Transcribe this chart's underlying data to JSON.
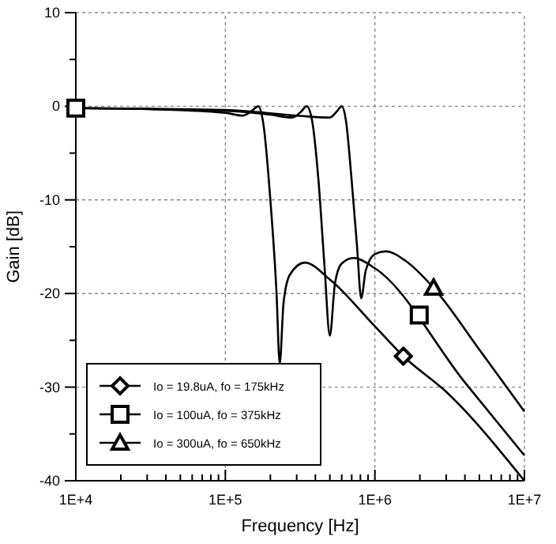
{
  "chart_data": {
    "type": "line",
    "xlabel": "Frequency [Hz]",
    "ylabel": "Gain [dB]",
    "log": "x",
    "grid": true,
    "legend": "bottom left",
    "line_style": "solid",
    "xlim": [
      10000,
      10000000
    ],
    "ylim": [
      -40,
      10
    ],
    "xticks": [
      {
        "value": 10000,
        "label": "1E+4"
      },
      {
        "value": 20000,
        "label": null
      },
      {
        "value": 30000,
        "label": null
      },
      {
        "value": 40000,
        "label": null
      },
      {
        "value": 50000,
        "label": null
      },
      {
        "value": 60000,
        "label": null
      },
      {
        "value": 70000,
        "label": null
      },
      {
        "value": 80000,
        "label": null
      },
      {
        "value": 90000,
        "label": null
      },
      {
        "value": 100000,
        "label": "1E+5"
      },
      {
        "value": 200000,
        "label": null
      },
      {
        "value": 300000,
        "label": null
      },
      {
        "value": 400000,
        "label": null
      },
      {
        "value": 500000,
        "label": null
      },
      {
        "value": 600000,
        "label": null
      },
      {
        "value": 700000,
        "label": null
      },
      {
        "value": 800000,
        "label": null
      },
      {
        "value": 900000,
        "label": null
      },
      {
        "value": 1000000,
        "label": "1E+6"
      },
      {
        "value": 2000000,
        "label": null
      },
      {
        "value": 3000000,
        "label": null
      },
      {
        "value": 4000000,
        "label": null
      },
      {
        "value": 5000000,
        "label": null
      },
      {
        "value": 6000000,
        "label": null
      },
      {
        "value": 7000000,
        "label": null
      },
      {
        "value": 8000000,
        "label": null
      },
      {
        "value": 9000000,
        "label": null
      },
      {
        "value": 10000000,
        "label": "1E+7"
      }
    ],
    "yticks": [
      -40,
      {
        "value": -35,
        "label": null
      },
      -30,
      {
        "value": -25,
        "label": null
      },
      -20,
      {
        "value": -15,
        "label": null
      },
      -10,
      {
        "value": -5,
        "label": null
      },
      0,
      {
        "value": 5,
        "label": null
      },
      10
    ],
    "series": [
      {
        "color": "#000000",
        "x": [
          10000,
          30000,
          100000,
          130000,
          150000,
          166000,
          180000,
          200000,
          220000,
          231000,
          245000,
          270000,
          340000,
          500000,
          1000000,
          1550000,
          3000000,
          10000000
        ],
        "values": [
          -0.2,
          -0.3,
          -0.7,
          -1.0,
          -0.5,
          0,
          -2,
          -10,
          -20,
          -27.5,
          -21,
          -18,
          -16.7,
          -18.5,
          -23.5,
          -26.7,
          -30.5,
          -40
        ]
      },
      {
        "color": "#000000",
        "x": [
          10000,
          100000,
          200000,
          280000,
          320000,
          350000,
          380000,
          420000,
          460000,
          500000,
          540000,
          600000,
          720000,
          1000000,
          4000000,
          10000000
        ],
        "values": [
          -0.2,
          -0.5,
          -0.9,
          -1.2,
          -0.6,
          0,
          -1.5,
          -8,
          -17,
          -24.5,
          -19,
          -16.8,
          -16.2,
          -17.3,
          -29.5,
          -37.3
        ]
      },
      {
        "color": "#000000",
        "x": [
          10000,
          100000,
          300000,
          500000,
          560000,
          600000,
          640000,
          700000,
          760000,
          810000,
          870000,
          1000000,
          1180000,
          1600000,
          2470000,
          5000000,
          10000000
        ],
        "values": [
          -0.2,
          -0.4,
          -1.0,
          -1.2,
          -0.5,
          0,
          -1.5,
          -8,
          -15,
          -20.5,
          -17.5,
          -15.8,
          -15.5,
          -16.5,
          -19.4,
          -26,
          -32.6
        ]
      },
      {
        "type": "scatter",
        "name": "Io = 19.8uA, fo = 175kHz",
        "color": "#000000",
        "marker": "diamond",
        "x": [
          1550000
        ],
        "values": [
          -26.7
        ]
      },
      {
        "type": "scatter",
        "name": "Io = 100uA, fo = 375kHz",
        "color": "#000000",
        "marker": "square",
        "x": [
          10000,
          1980000
        ],
        "values": [
          -0.2,
          -22.3
        ]
      },
      {
        "type": "scatter",
        "name": "Io = 300uA, fo = 650kHz",
        "color": "#000000",
        "marker": "triangle",
        "x": [
          2470000
        ],
        "values": [
          -19.4
        ]
      }
    ]
  }
}
